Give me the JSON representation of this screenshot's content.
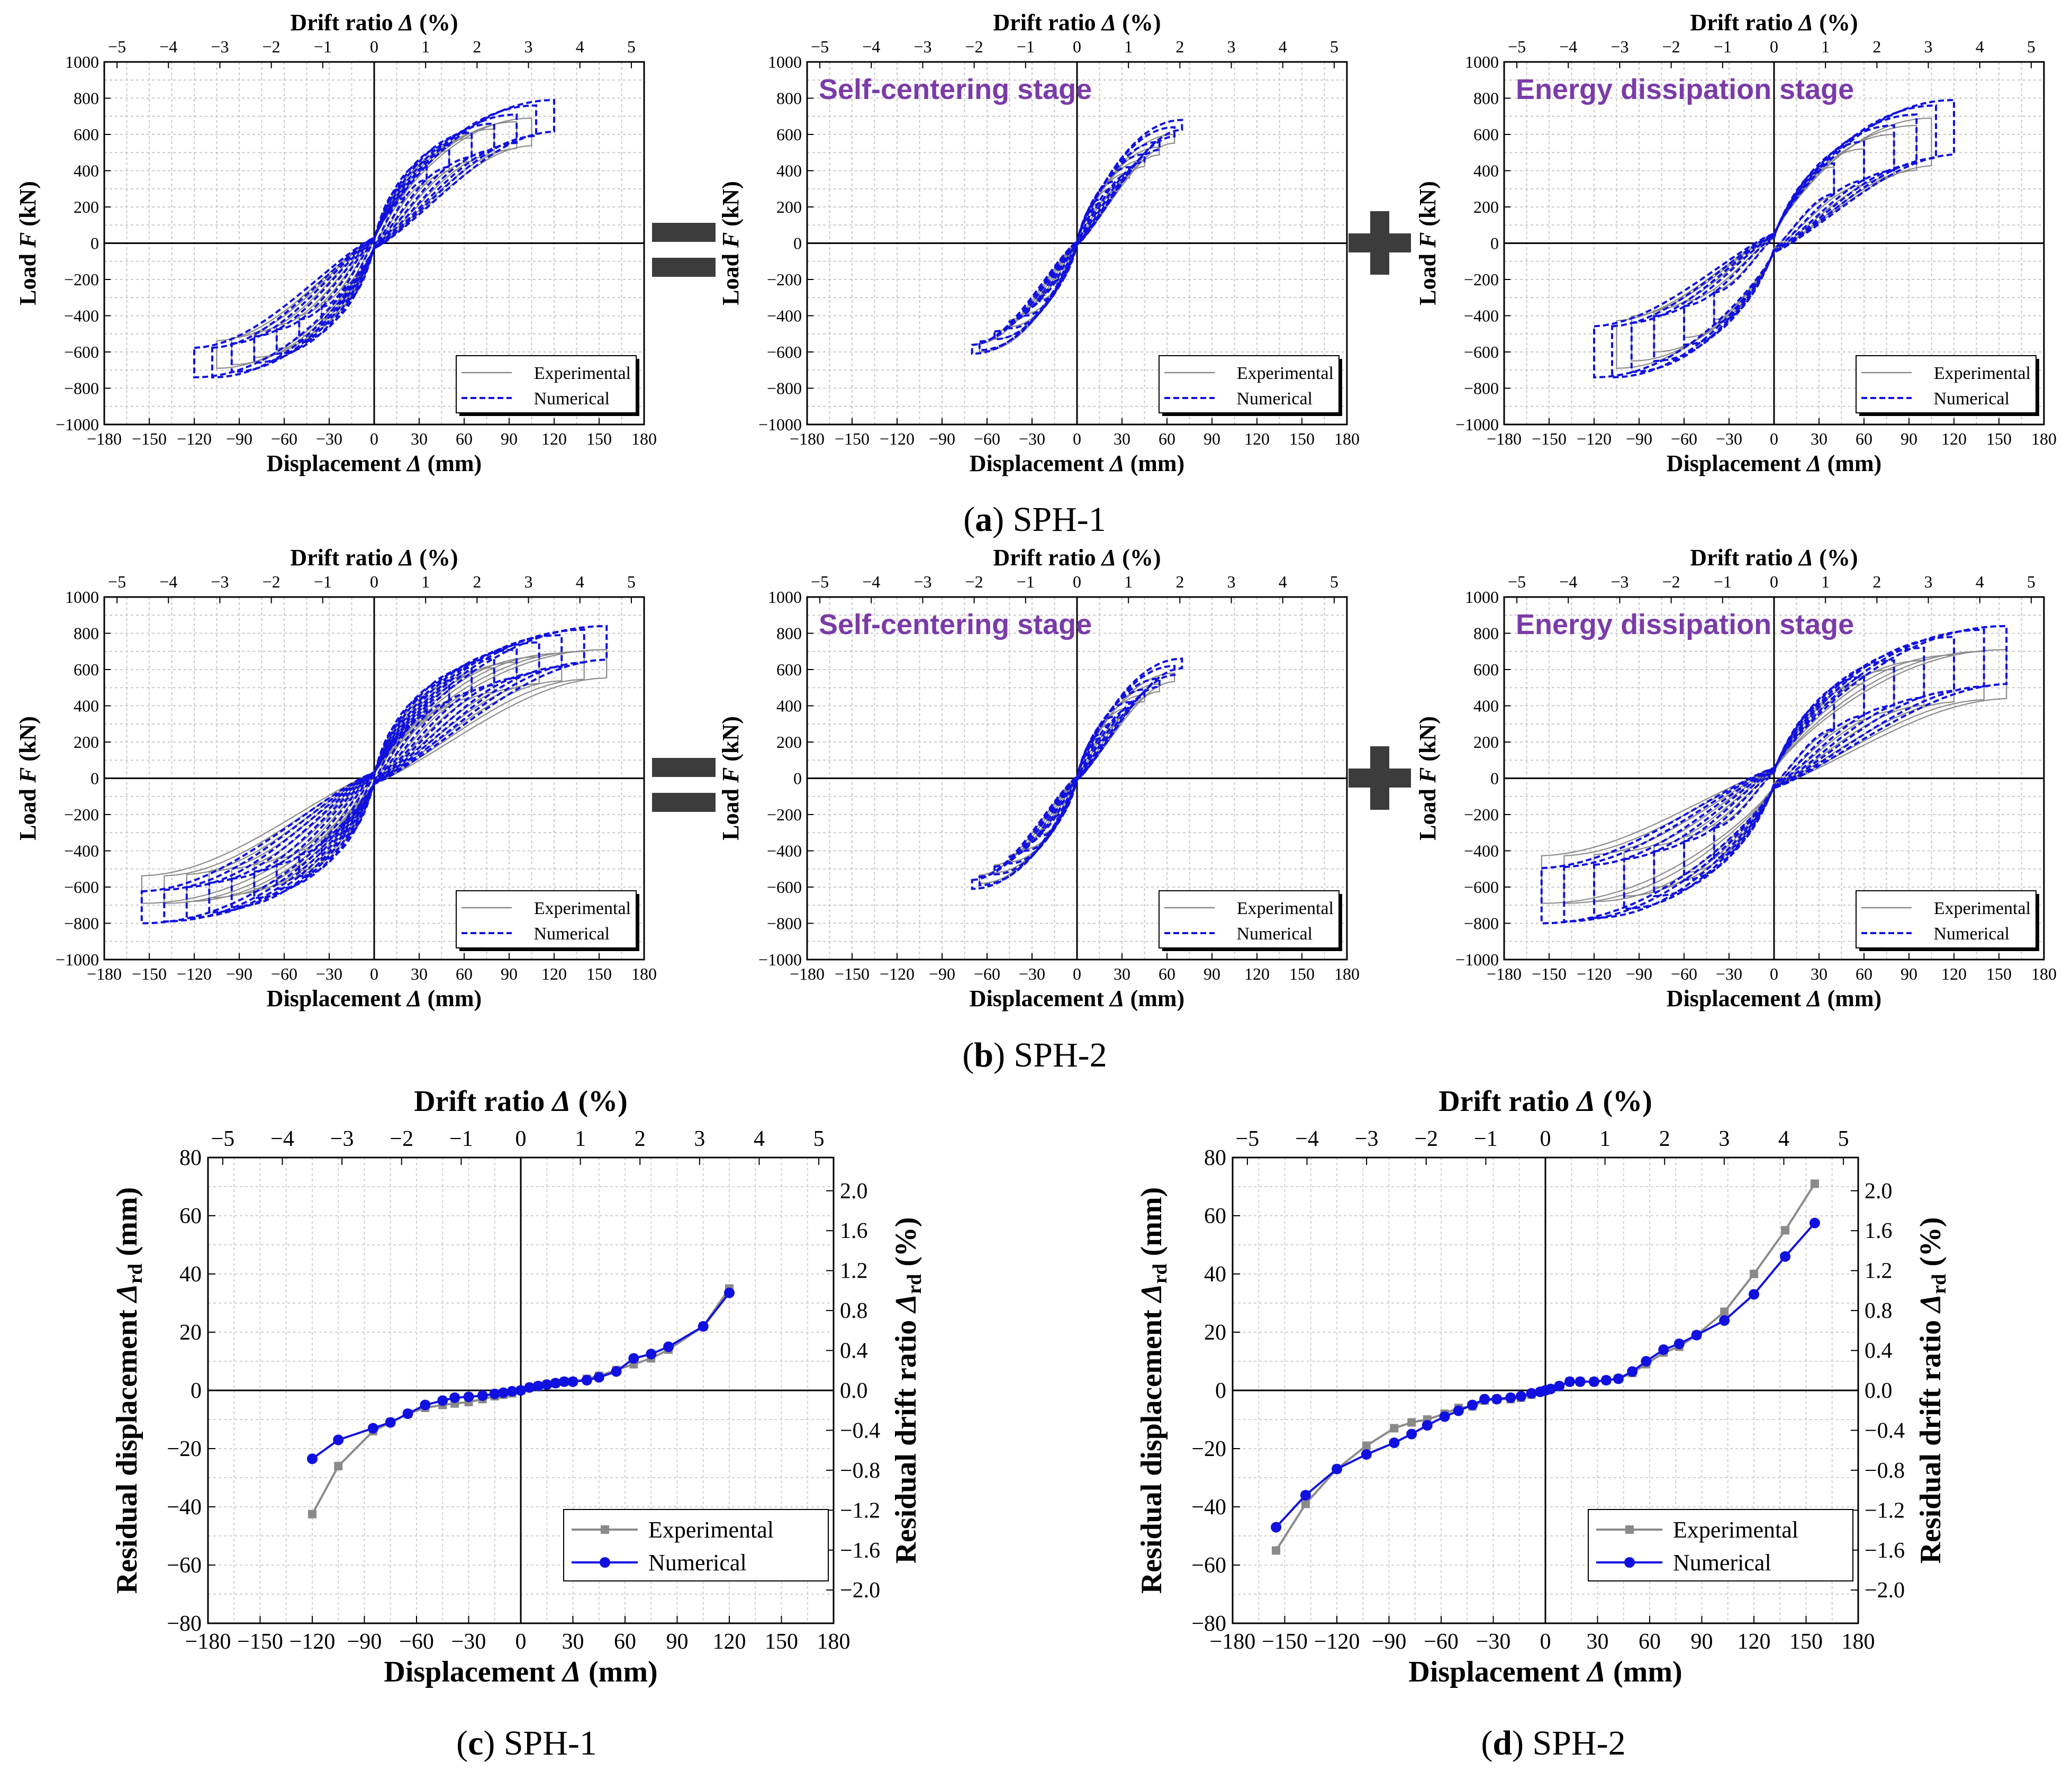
{
  "colors": {
    "experimental": "#8a8a8a",
    "numerical": "#1010e0",
    "stage_text": "#7a3ba8",
    "operator": "#3c3c3c"
  },
  "operators": {
    "equals_icon": "equals-icon",
    "plus_icon": "plus-icon"
  },
  "labels": {
    "drift_ratio": "Drift ratio Δ (%)",
    "displacement": "Displacement Δ (mm)",
    "load": "Load F (kN)",
    "residual_disp_main": "Residual displacement Δ",
    "residual_drift_main": "Residual drift ratio Δ",
    "sub_rd": "rd",
    "unit_mm": " (mm)",
    "unit_pct": " (%)"
  },
  "legend": {
    "experimental": "Experimental",
    "numerical": "Numerical"
  },
  "stages": {
    "self_centering": "Self-centering stage",
    "energy_dissipation": "Energy dissipation stage"
  },
  "captions": {
    "a": {
      "letter": "a",
      "text": " SPH-1"
    },
    "b": {
      "letter": "b",
      "text": " SPH-2"
    },
    "c": {
      "letter": "c",
      "text": " SPH-1"
    },
    "d": {
      "letter": "d",
      "text": " SPH-2"
    }
  },
  "chart_data": [
    {
      "id": "a-total",
      "type": "line",
      "title": "",
      "xlabel": "Displacement Δ (mm)",
      "x2label": "Drift ratio Δ (%)",
      "ylabel": "Load F (kN)",
      "xlim": [
        -180,
        180
      ],
      "ylim": [
        -1000,
        1000
      ],
      "x_ticks": [
        -180,
        -150,
        -120,
        -90,
        -60,
        -30,
        0,
        30,
        60,
        90,
        120,
        150,
        180
      ],
      "x2_ticks": [
        -5,
        -4,
        -3,
        -2,
        -1,
        0,
        1,
        2,
        3,
        4,
        5
      ],
      "y_ticks": [
        -1000,
        -800,
        -600,
        -400,
        -200,
        0,
        200,
        400,
        600,
        800,
        1000
      ],
      "series": [
        {
          "name": "Experimental",
          "peak_disp": [
            20,
            35,
            50,
            65,
            80,
            95,
            105
          ],
          "peak_load": [
            300,
            420,
            510,
            580,
            630,
            670,
            690
          ],
          "neg_peak_load": [
            -300,
            -420,
            -510,
            -580,
            -630,
            -670,
            -690
          ]
        },
        {
          "name": "Numerical",
          "peak_disp": [
            20,
            35,
            50,
            65,
            80,
            95,
            108,
            120
          ],
          "peak_load": [
            320,
            450,
            540,
            610,
            660,
            710,
            760,
            790
          ],
          "neg_peak_load": [
            -320,
            -450,
            -540,
            -610,
            -660,
            -710,
            -740,
            -740
          ]
        }
      ]
    },
    {
      "id": "a-self-centering",
      "type": "line",
      "title": "Self-centering stage",
      "xlabel": "Displacement Δ (mm)",
      "x2label": "Drift ratio Δ (%)",
      "ylabel": "Load F (kN)",
      "xlim": [
        -180,
        180
      ],
      "ylim": [
        -1000,
        1000
      ],
      "series": [
        {
          "name": "Experimental",
          "peak_disp": [
            15,
            25,
            35,
            45,
            55,
            65
          ],
          "peak_load": [
            220,
            310,
            390,
            460,
            530,
            600
          ],
          "neg_peak_load": [
            -220,
            -310,
            -390,
            -460,
            -530,
            -600
          ]
        },
        {
          "name": "Numerical",
          "peak_disp": [
            15,
            25,
            35,
            45,
            55,
            65,
            70
          ],
          "peak_load": [
            240,
            340,
            420,
            490,
            560,
            640,
            680
          ],
          "neg_peak_load": [
            -230,
            -320,
            -400,
            -470,
            -530,
            -590,
            -610
          ]
        }
      ]
    },
    {
      "id": "a-energy-dissipation",
      "type": "line",
      "title": "Energy dissipation stage",
      "xlabel": "Displacement Δ (mm)",
      "x2label": "Drift ratio Δ (%)",
      "ylabel": "Load F (kN)",
      "xlim": [
        -180,
        180
      ],
      "ylim": [
        -1000,
        1000
      ],
      "series": [
        {
          "name": "Experimental",
          "peak_disp": [
            40,
            60,
            80,
            95,
            105
          ],
          "peak_load": [
            420,
            520,
            600,
            650,
            690
          ],
          "neg_peak_load": [
            -420,
            -520,
            -600,
            -650,
            -690
          ]
        },
        {
          "name": "Numerical",
          "peak_disp": [
            40,
            60,
            80,
            95,
            108,
            120
          ],
          "peak_load": [
            440,
            560,
            650,
            710,
            760,
            790
          ],
          "neg_peak_load": [
            -440,
            -560,
            -650,
            -710,
            -740,
            -740
          ]
        }
      ]
    },
    {
      "id": "b-total",
      "type": "line",
      "title": "",
      "xlabel": "Displacement Δ (mm)",
      "x2label": "Drift ratio Δ (%)",
      "ylabel": "Load F (kN)",
      "xlim": [
        -180,
        180
      ],
      "ylim": [
        -1000,
        1000
      ],
      "series": [
        {
          "name": "Experimental",
          "peak_disp": [
            20,
            35,
            50,
            65,
            80,
            95,
            110,
            125,
            140,
            155
          ],
          "peak_load": [
            300,
            420,
            510,
            570,
            610,
            640,
            670,
            690,
            700,
            710
          ],
          "neg_peak_load": [
            -300,
            -420,
            -510,
            -570,
            -610,
            -640,
            -660,
            -680,
            -690,
            -690
          ]
        },
        {
          "name": "Numerical",
          "peak_disp": [
            20,
            35,
            50,
            65,
            80,
            95,
            110,
            125,
            140,
            155
          ],
          "peak_load": [
            320,
            450,
            540,
            610,
            660,
            710,
            750,
            790,
            820,
            840
          ],
          "neg_peak_load": [
            -320,
            -450,
            -540,
            -610,
            -660,
            -710,
            -740,
            -770,
            -790,
            -800
          ]
        }
      ]
    },
    {
      "id": "b-self-centering",
      "type": "line",
      "title": "Self-centering stage",
      "xlabel": "Displacement Δ (mm)",
      "x2label": "Drift ratio Δ (%)",
      "ylabel": "Load F (kN)",
      "xlim": [
        -180,
        180
      ],
      "ylim": [
        -1000,
        1000
      ],
      "series": [
        {
          "name": "Experimental",
          "peak_disp": [
            15,
            25,
            35,
            45,
            55,
            65
          ],
          "peak_load": [
            220,
            310,
            390,
            460,
            520,
            580
          ],
          "neg_peak_load": [
            -220,
            -310,
            -390,
            -460,
            -520,
            -580
          ]
        },
        {
          "name": "Numerical",
          "peak_disp": [
            15,
            25,
            35,
            45,
            55,
            65,
            70
          ],
          "peak_load": [
            240,
            340,
            420,
            490,
            550,
            620,
            660
          ],
          "neg_peak_load": [
            -230,
            -320,
            -400,
            -470,
            -530,
            -590,
            -610
          ]
        }
      ]
    },
    {
      "id": "b-energy-dissipation",
      "type": "line",
      "title": "Energy dissipation stage",
      "xlabel": "Displacement Δ (mm)",
      "x2label": "Drift ratio Δ (%)",
      "ylabel": "Load F (kN)",
      "xlim": [
        -180,
        180
      ],
      "ylim": [
        -1000,
        1000
      ],
      "series": [
        {
          "name": "Experimental",
          "peak_disp": [
            40,
            60,
            80,
            100,
            120,
            140,
            155
          ],
          "peak_load": [
            420,
            520,
            600,
            650,
            680,
            700,
            710
          ],
          "neg_peak_load": [
            -420,
            -520,
            -600,
            -650,
            -680,
            -690,
            -690
          ]
        },
        {
          "name": "Numerical",
          "peak_disp": [
            40,
            60,
            80,
            100,
            120,
            140,
            155
          ],
          "peak_load": [
            440,
            560,
            650,
            720,
            780,
            820,
            840
          ],
          "neg_peak_load": [
            -440,
            -560,
            -650,
            -720,
            -770,
            -790,
            -800
          ]
        }
      ]
    },
    {
      "id": "c",
      "type": "line",
      "title": "",
      "xlabel": "Displacement Δ (mm)",
      "x2label": "Drift ratio Δ (%)",
      "ylabel": "Residual displacement Δrd (mm)",
      "y2label": "Residual drift ratio Δrd (%)",
      "xlim": [
        -180,
        180
      ],
      "ylim": [
        -80,
        80
      ],
      "y_ticks": [
        -80,
        -60,
        -40,
        -20,
        0,
        20,
        40,
        60,
        80
      ],
      "y2_ticks": [
        -2.0,
        -1.6,
        -1.2,
        -0.8,
        -0.4,
        0.0,
        0.4,
        0.8,
        1.2,
        1.6,
        2.0
      ],
      "series": [
        {
          "name": "Experimental",
          "x": [
            -120,
            -105,
            -85,
            -75,
            -65,
            -55,
            -45,
            -38,
            -30,
            -22,
            -15,
            -10,
            -5,
            0,
            5,
            10,
            15,
            20,
            25,
            30,
            38,
            45,
            55,
            65,
            75,
            85,
            105,
            120
          ],
          "y": [
            -42.5,
            -26,
            -14,
            -11,
            -8,
            -6,
            -5,
            -4.5,
            -4,
            -3,
            -2,
            -1.5,
            -1,
            0,
            1,
            1.5,
            2,
            2.5,
            3,
            3,
            4,
            5,
            7,
            9,
            11,
            14,
            22,
            35
          ]
        },
        {
          "name": "Numerical",
          "x": [
            -120,
            -105,
            -85,
            -75,
            -65,
            -55,
            -45,
            -38,
            -30,
            -22,
            -15,
            -10,
            -5,
            0,
            5,
            10,
            15,
            20,
            25,
            30,
            38,
            45,
            55,
            65,
            75,
            85,
            105,
            120
          ],
          "y": [
            -23.5,
            -17,
            -13,
            -11,
            -8,
            -5,
            -3.5,
            -2.5,
            -2.2,
            -1.8,
            -1.2,
            -0.8,
            -0.3,
            0,
            1,
            1.5,
            2,
            2.5,
            3,
            3,
            3.5,
            4.5,
            6.5,
            11,
            12.5,
            15,
            22,
            33.5
          ]
        }
      ]
    },
    {
      "id": "d",
      "type": "line",
      "title": "",
      "xlabel": "Displacement Δ (mm)",
      "x2label": "Drift ratio Δ (%)",
      "ylabel": "Residual displacement Δrd (mm)",
      "y2label": "Residual drift ratio Δrd (%)",
      "xlim": [
        -180,
        180
      ],
      "ylim": [
        -80,
        80
      ],
      "series": [
        {
          "name": "Experimental",
          "x": [
            -155,
            -138,
            -120,
            -103,
            -87,
            -77,
            -68,
            -58,
            -50,
            -42,
            -35,
            -28,
            -20,
            -14,
            -8,
            -3,
            0,
            3,
            8,
            14,
            20,
            28,
            35,
            42,
            50,
            58,
            68,
            77,
            87,
            103,
            120,
            138,
            155
          ],
          "y": [
            -55,
            -39,
            -27,
            -19,
            -13,
            -11,
            -10,
            -8,
            -6,
            -5.5,
            -3.5,
            -3,
            -3,
            -2.5,
            -1.5,
            -0.5,
            0,
            0.5,
            1.5,
            3,
            3,
            3,
            3.5,
            4,
            6,
            9,
            13,
            15,
            19,
            27,
            40,
            55,
            71
          ]
        },
        {
          "name": "Numerical",
          "x": [
            -155,
            -138,
            -120,
            -103,
            -87,
            -77,
            -68,
            -58,
            -50,
            -42,
            -35,
            -28,
            -20,
            -14,
            -8,
            -3,
            0,
            3,
            8,
            14,
            20,
            28,
            35,
            42,
            50,
            58,
            68,
            77,
            87,
            103,
            120,
            138,
            155
          ],
          "y": [
            -47,
            -36,
            -27,
            -22,
            -18,
            -15,
            -12,
            -9,
            -7,
            -5,
            -3,
            -3,
            -2.5,
            -2,
            -1,
            -0.5,
            0,
            0.5,
            1.5,
            3,
            3,
            3,
            3.5,
            4,
            6.5,
            10,
            14,
            16,
            19,
            24,
            33,
            46,
            57.5
          ]
        }
      ]
    }
  ]
}
